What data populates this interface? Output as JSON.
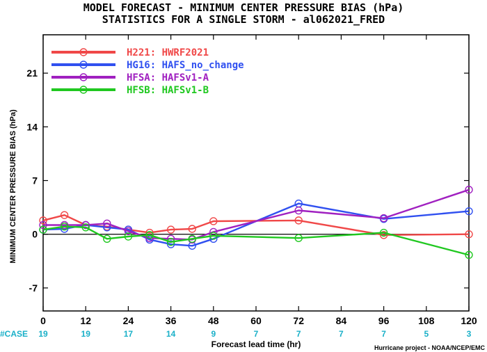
{
  "header": {
    "title_line1": "MODEL FORECAST - MINIMUM CENTER PRESSURE BIAS (hPa)",
    "title_line2": "STATISTICS FOR A SINGLE STORM - al062021_FRED"
  },
  "footer": {
    "case_label": "#CASE",
    "credit": "Hurricane project - NOAA/NCEP/EMC"
  },
  "chart_data": {
    "type": "line",
    "title": "MODEL FORECAST - MINIMUM CENTER PRESSURE BIAS (hPa)",
    "subtitle": "STATISTICS FOR A SINGLE STORM - al062021_FRED",
    "xlabel": "Forecast lead time (hr)",
    "ylabel": "MINIMUM CENTER PRESSURE BIAS (hPa)",
    "xlim": [
      0,
      120
    ],
    "ylim": [
      -10,
      26
    ],
    "xticks": [
      0,
      12,
      24,
      36,
      48,
      60,
      72,
      84,
      96,
      108,
      120
    ],
    "xtick_labels": [
      "0",
      "12",
      "24",
      "36",
      "48",
      "60",
      "72",
      "84",
      "96",
      "108",
      "120"
    ],
    "yticks": [
      -7,
      0,
      7,
      14,
      21
    ],
    "ytick_labels": [
      "-7",
      "0",
      "7",
      "14",
      "21"
    ],
    "zero_line": true,
    "grid": false,
    "legend_position": "top-left",
    "cases": [
      "19",
      "19",
      "17",
      "14",
      "9",
      "7",
      "7",
      "7",
      "7",
      "5",
      "3"
    ],
    "series": [
      {
        "name": "H221: HWRF2021",
        "color": "#f04848",
        "x": [
          0,
          6,
          12,
          18,
          24,
          30,
          36,
          42,
          48,
          72,
          96,
          120
        ],
        "y": [
          1.8,
          2.5,
          1.2,
          1.0,
          0.6,
          0.2,
          0.6,
          0.7,
          1.7,
          1.8,
          -0.1,
          0.0
        ]
      },
      {
        "name": "HG16: HAFS_no_change",
        "color": "#3050f0",
        "x": [
          0,
          6,
          12,
          18,
          24,
          30,
          36,
          42,
          48,
          72,
          96,
          120
        ],
        "y": [
          0.6,
          0.7,
          1.2,
          0.9,
          0.6,
          -0.7,
          -1.3,
          -1.5,
          -0.6,
          4.0,
          2.0,
          3.0
        ]
      },
      {
        "name": "HFSA: HAFSv1-A",
        "color": "#a020c0",
        "x": [
          0,
          6,
          12,
          18,
          24,
          30,
          36,
          42,
          48,
          72,
          96,
          120
        ],
        "y": [
          1.2,
          1.2,
          1.2,
          1.4,
          0.4,
          -0.5,
          -0.6,
          -0.7,
          0.3,
          3.1,
          2.1,
          5.8
        ]
      },
      {
        "name": "HFSB: HAFSv1-B",
        "color": "#20c820",
        "x": [
          0,
          6,
          12,
          18,
          24,
          30,
          36,
          42,
          48,
          72,
          96,
          120
        ],
        "y": [
          0.6,
          1.0,
          0.9,
          -0.6,
          -0.3,
          -0.1,
          -1.0,
          -0.6,
          -0.2,
          -0.5,
          0.2,
          -2.7
        ]
      }
    ]
  }
}
